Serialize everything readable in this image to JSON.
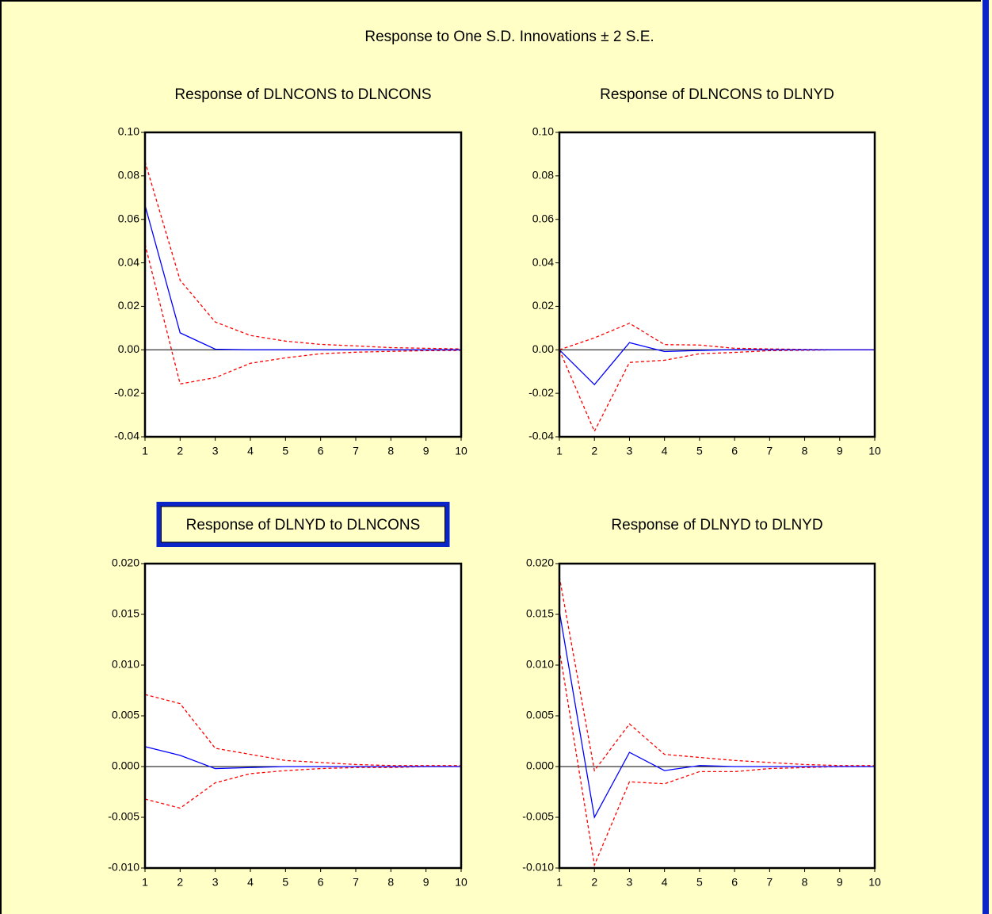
{
  "title": "Response to One S.D. Innovations ± 2 S.E.",
  "chart_data": [
    {
      "type": "line",
      "title": "Response of DLNCONS to DLNCONS",
      "x": [
        1,
        2,
        3,
        4,
        5,
        6,
        7,
        8,
        9,
        10
      ],
      "xlim": [
        1,
        10
      ],
      "xticks": [
        1,
        2,
        3,
        4,
        5,
        6,
        7,
        8,
        9,
        10
      ],
      "ylim": [
        -0.04,
        0.1
      ],
      "yticks": [
        {
          "value": -0.04,
          "label": "-0.04"
        },
        {
          "value": -0.02,
          "label": "-0.02"
        },
        {
          "value": 0,
          "label": "0.00"
        },
        {
          "value": 0.02,
          "label": "0.02"
        },
        {
          "value": 0.04,
          "label": "0.04"
        },
        {
          "value": 0.06,
          "label": "0.06"
        },
        {
          "value": 0.08,
          "label": "0.08"
        },
        {
          "value": 0.1,
          "label": "0.10"
        }
      ],
      "series": [
        {
          "color": "#0000ff",
          "style": "solid",
          "values": [
            0.0665,
            0.0078,
            0.0003,
            0,
            0,
            0,
            0,
            0,
            0,
            0
          ]
        },
        {
          "color": "#ff0000",
          "style": "dashed",
          "values": [
            0.0866,
            0.032,
            0.0128,
            0.0066,
            0.004,
            0.0025,
            0.0018,
            0.001,
            0.0007,
            0.0004
          ]
        },
        {
          "color": "#ff0000",
          "style": "dashed",
          "values": [
            0.0486,
            -0.0157,
            -0.0128,
            -0.0062,
            -0.0037,
            -0.0018,
            -0.0011,
            -0.0007,
            -0.0004,
            -0.0003
          ]
        }
      ]
    },
    {
      "type": "line",
      "title": "Response of DLNCONS to DLNYD",
      "x": [
        1,
        2,
        3,
        4,
        5,
        6,
        7,
        8,
        9,
        10
      ],
      "xlim": [
        1,
        10
      ],
      "xticks": [
        1,
        2,
        3,
        4,
        5,
        6,
        7,
        8,
        9,
        10
      ],
      "ylim": [
        -0.04,
        0.1
      ],
      "yticks": [
        {
          "value": -0.04,
          "label": "-0.04"
        },
        {
          "value": -0.02,
          "label": "-0.02"
        },
        {
          "value": 0,
          "label": "0.00"
        },
        {
          "value": 0.02,
          "label": "0.02"
        },
        {
          "value": 0.04,
          "label": "0.04"
        },
        {
          "value": 0.06,
          "label": "0.06"
        },
        {
          "value": 0.08,
          "label": "0.08"
        },
        {
          "value": 0.1,
          "label": "0.10"
        }
      ],
      "series": [
        {
          "color": "#0000ff",
          "style": "solid",
          "values": [
            0,
            -0.016,
            0.0033,
            -0.0008,
            -0.0003,
            0.0001,
            0,
            0,
            0,
            0
          ]
        },
        {
          "color": "#ff0000",
          "style": "dashed",
          "values": [
            0,
            0.0055,
            0.0122,
            0.0024,
            0.0022,
            0.0007,
            0.0004,
            0.0002,
            0,
            0
          ]
        },
        {
          "color": "#ff0000",
          "style": "dashed",
          "values": [
            0,
            -0.0375,
            -0.0058,
            -0.0048,
            -0.0018,
            -0.0012,
            -0.0004,
            -0.0002,
            0,
            0
          ]
        }
      ]
    },
    {
      "type": "line",
      "title": "Response of DLNYD to DLNCONS",
      "highlighted": true,
      "x": [
        1,
        2,
        3,
        4,
        5,
        6,
        7,
        8,
        9,
        10
      ],
      "xlim": [
        1,
        10
      ],
      "xticks": [
        1,
        2,
        3,
        4,
        5,
        6,
        7,
        8,
        9,
        10
      ],
      "ylim": [
        -0.01,
        0.02
      ],
      "yticks": [
        {
          "value": -0.01,
          "label": "-0.010"
        },
        {
          "value": -0.005,
          "label": "-0.005"
        },
        {
          "value": 0,
          "label": "0.000"
        },
        {
          "value": 0.005,
          "label": "0.005"
        },
        {
          "value": 0.01,
          "label": "0.010"
        },
        {
          "value": 0.015,
          "label": "0.015"
        },
        {
          "value": 0.02,
          "label": "0.020"
        }
      ],
      "series": [
        {
          "color": "#0000ff",
          "style": "solid",
          "values": [
            0.00196,
            0.0011,
            -0.0002,
            -0.0001,
            0,
            0,
            0,
            0,
            0,
            0
          ]
        },
        {
          "color": "#ff0000",
          "style": "dashed",
          "values": [
            0.0071,
            0.0062,
            0.0018,
            0.0012,
            0.0006,
            0.0004,
            0.0002,
            0.0001,
            0.0001,
            0.0001
          ]
        },
        {
          "color": "#ff0000",
          "style": "dashed",
          "values": [
            -0.0032,
            -0.0041,
            -0.0016,
            -0.0007,
            -0.0004,
            -0.0002,
            -0.0001,
            -0.0001,
            0,
            0
          ]
        }
      ]
    },
    {
      "type": "line",
      "title": "Response of DLNYD to DLNYD",
      "x": [
        1,
        2,
        3,
        4,
        5,
        6,
        7,
        8,
        9,
        10
      ],
      "xlim": [
        1,
        10
      ],
      "xticks": [
        1,
        2,
        3,
        4,
        5,
        6,
        7,
        8,
        9,
        10
      ],
      "ylim": [
        -0.01,
        0.02
      ],
      "yticks": [
        {
          "value": -0.01,
          "label": "-0.010"
        },
        {
          "value": -0.005,
          "label": "-0.005"
        },
        {
          "value": 0,
          "label": "0.000"
        },
        {
          "value": 0.005,
          "label": "0.005"
        },
        {
          "value": 0.01,
          "label": "0.010"
        },
        {
          "value": 0.015,
          "label": "0.015"
        },
        {
          "value": 0.02,
          "label": "0.020"
        }
      ],
      "series": [
        {
          "color": "#0000ff",
          "style": "solid",
          "values": [
            0.0153,
            -0.005,
            0.0014,
            -0.0004,
            0.0001,
            0,
            0,
            0,
            0,
            0
          ]
        },
        {
          "color": "#ff0000",
          "style": "dashed",
          "values": [
            0.0187,
            -0.0004,
            0.0042,
            0.0012,
            0.0009,
            0.0006,
            0.0004,
            0.0002,
            0.0001,
            0.0001
          ]
        },
        {
          "color": "#ff0000",
          "style": "dashed",
          "values": [
            0.0115,
            -0.0097,
            -0.0015,
            -0.0017,
            -0.0005,
            -0.0005,
            -0.0002,
            -0.0001,
            0,
            0
          ]
        }
      ]
    }
  ]
}
